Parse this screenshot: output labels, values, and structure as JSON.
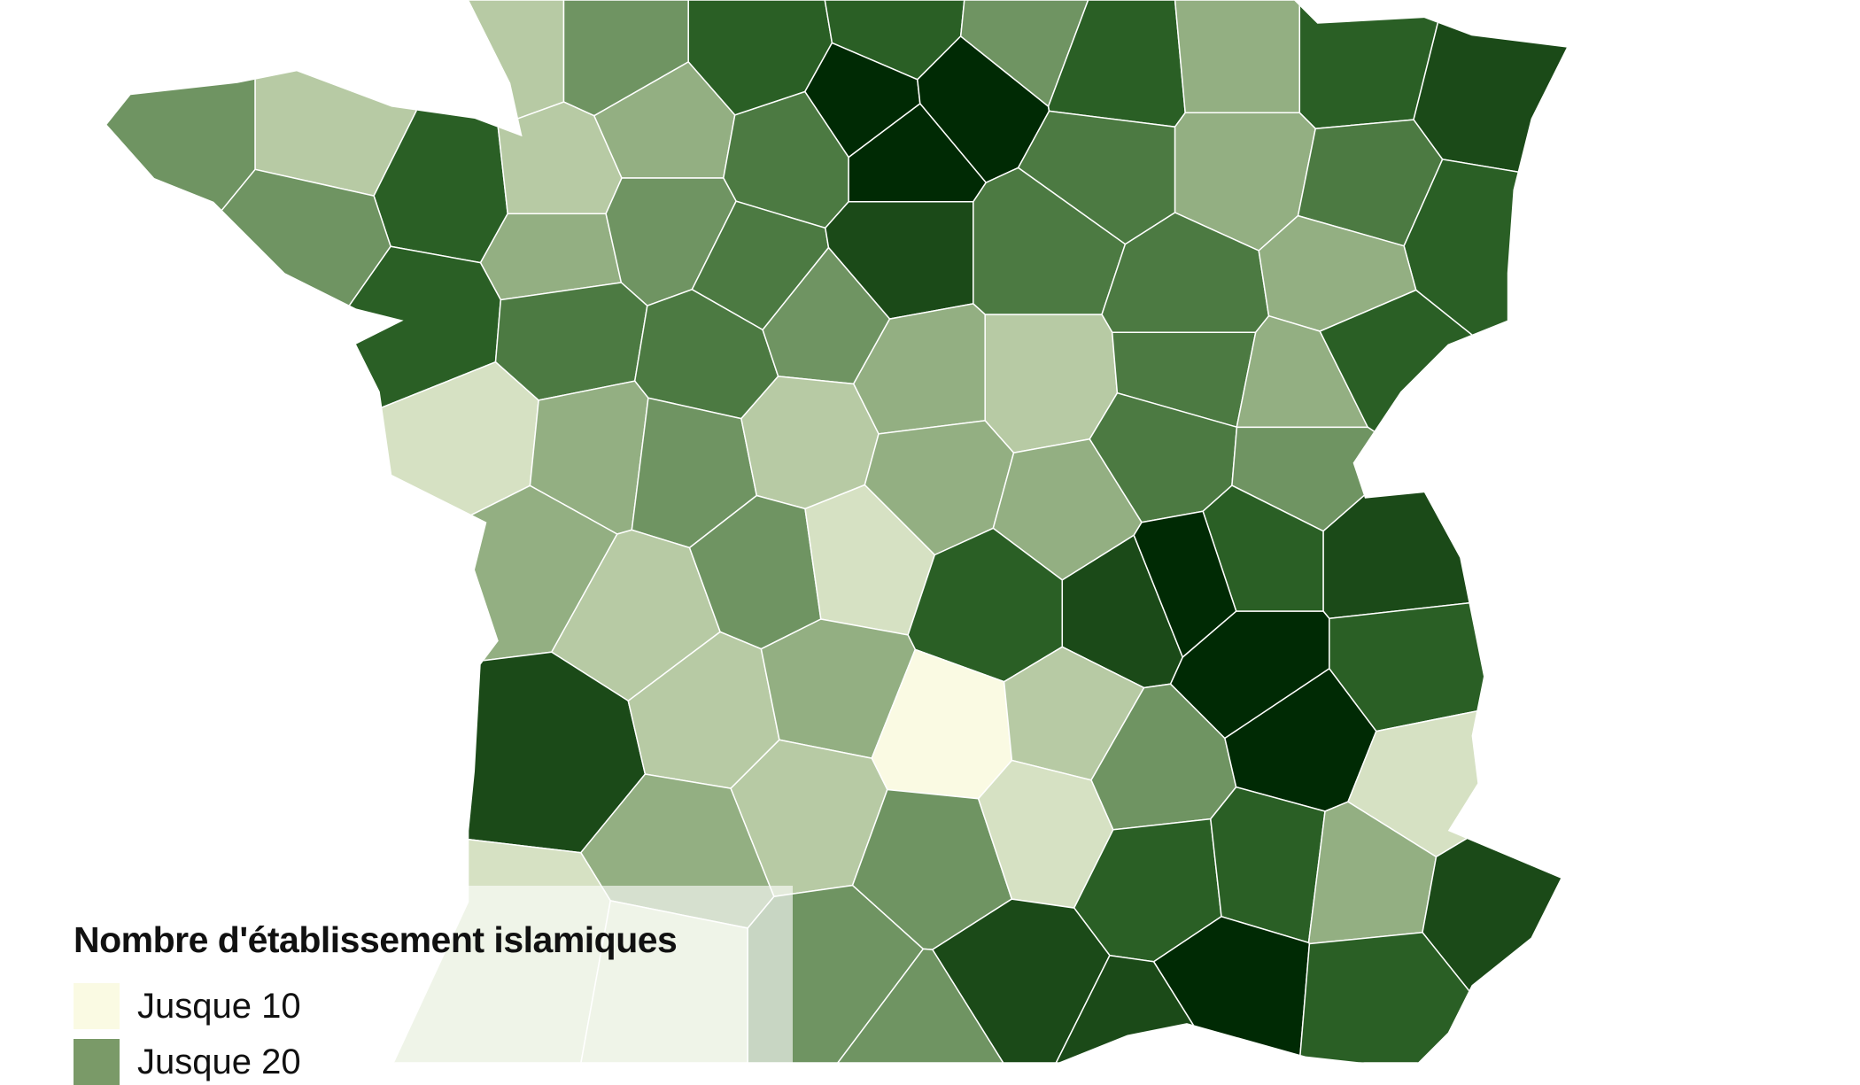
{
  "legend": {
    "title": "Nombre d'établissement islamiques",
    "items": [
      {
        "label": "Jusque 10",
        "color": "#fafae3"
      },
      {
        "label": "Jusque 20",
        "color": "#7a9a68"
      }
    ]
  },
  "palette": [
    "#fafae3",
    "#d6e1c3",
    "#b7caa4",
    "#93af82",
    "#6f9462",
    "#4c7a42",
    "#2a5f25",
    "#1b4a18",
    "#002a04"
  ],
  "border_color": "#ffffff"
}
